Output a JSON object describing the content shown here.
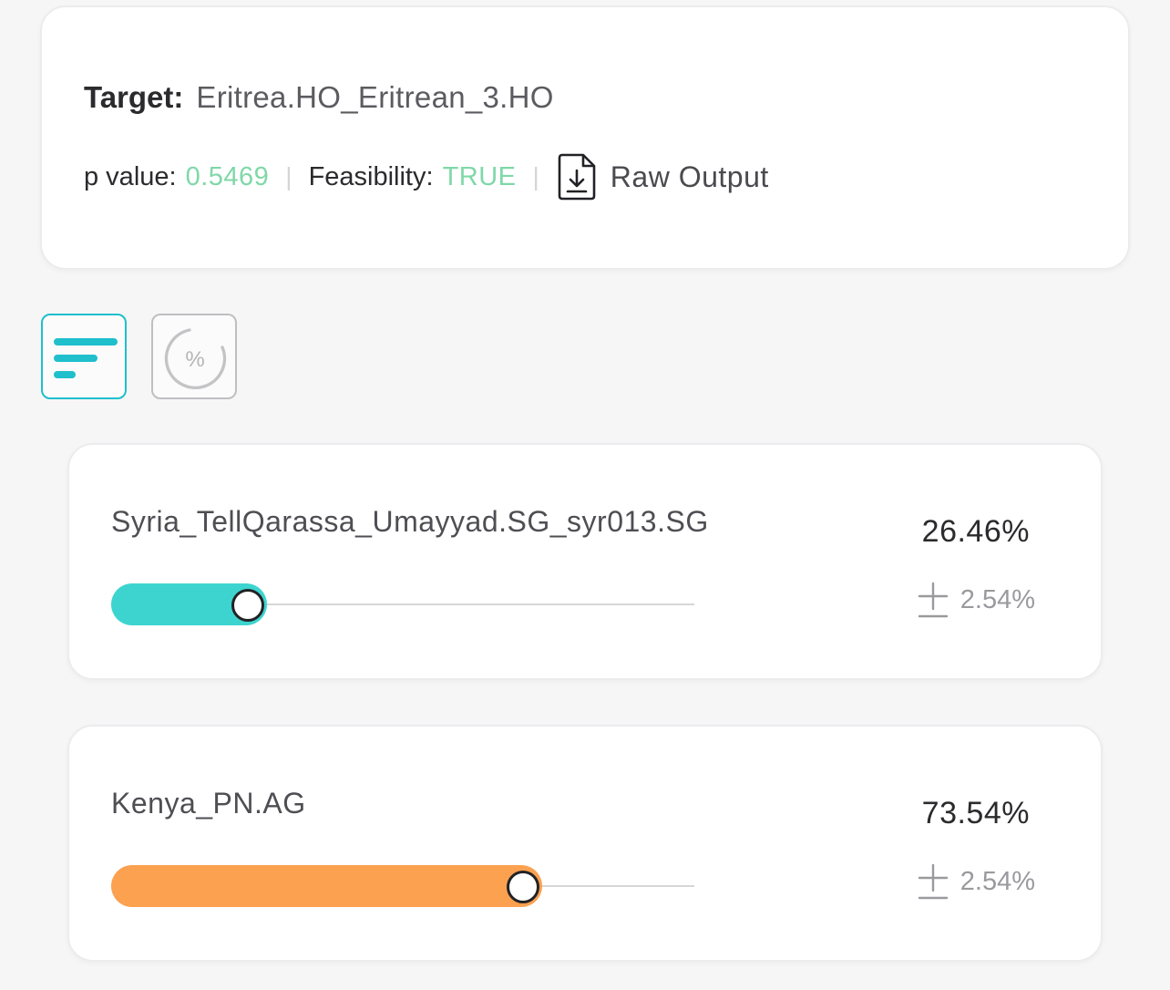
{
  "header": {
    "target_label": "Target:",
    "target_value": "Eritrea.HO_Eritrean_3.HO",
    "p_value_label": "p value:",
    "p_value": "0.5469",
    "separator": "|",
    "feasibility_label": "Feasibility:",
    "feasibility_value": "TRUE",
    "raw_output_label": "Raw Output",
    "raw_output_icon": "file-download-icon",
    "accent_value_color": "#7fd8a8"
  },
  "view_toggle": {
    "active": "bar-view",
    "buttons": [
      {
        "name": "bar-view",
        "icon": "bar-list-icon"
      },
      {
        "name": "pie-view",
        "icon": "percent-circle-icon"
      }
    ],
    "active_color": "#1fbfcc"
  },
  "sources": [
    {
      "name": "Syria_TellQarassa_Umayyad.SG_syr013.SG",
      "percent_label": "26.46%",
      "error_label": "2.54%",
      "value": 26.46,
      "color": "#3dd4cf"
    },
    {
      "name": "Kenya_PN.AG",
      "percent_label": "73.54%",
      "error_label": "2.54%",
      "value": 73.54,
      "color": "#fba14f"
    }
  ]
}
